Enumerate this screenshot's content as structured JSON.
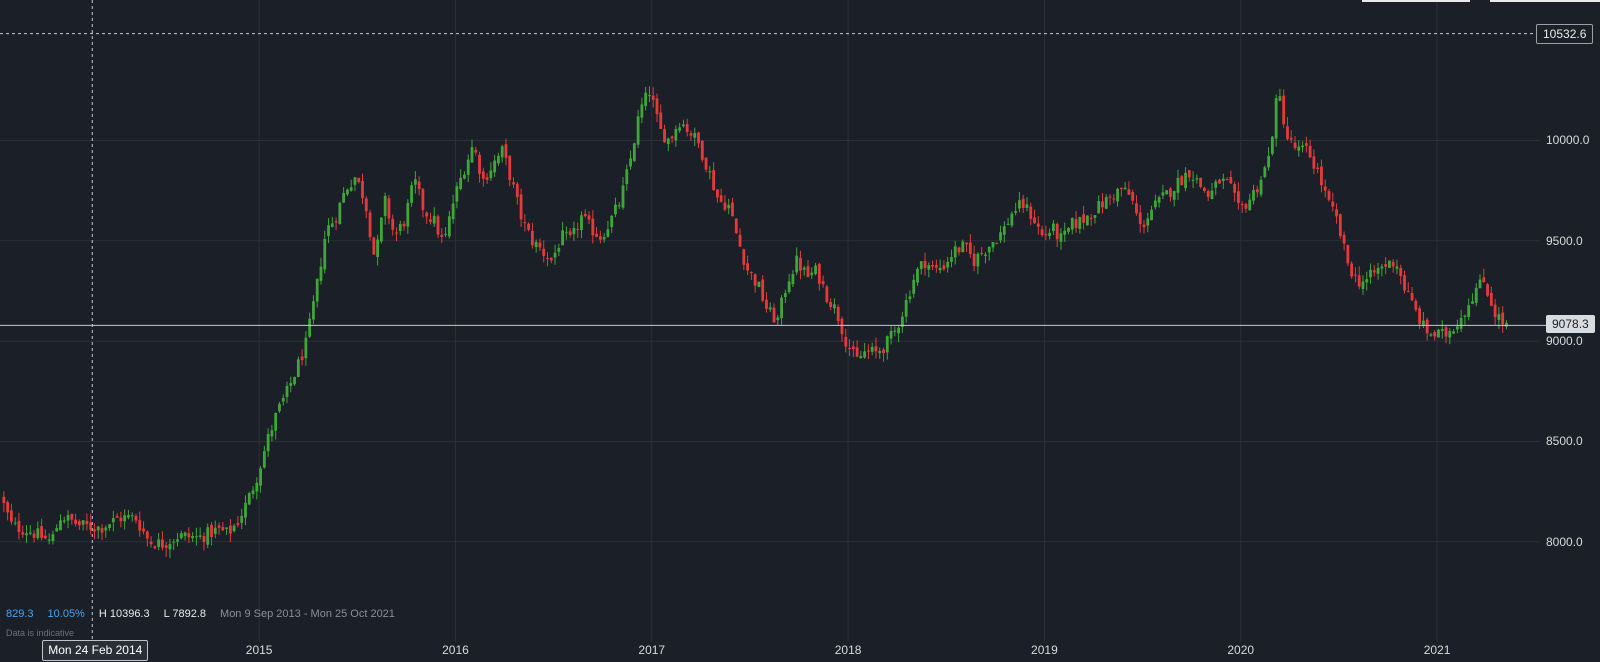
{
  "chart_data": {
    "type": "candlestick",
    "x_axis_labels": [
      "2015",
      "2016",
      "2017",
      "2018",
      "2019",
      "2020",
      "2021"
    ],
    "y_axis_labels": [
      "10000.0",
      "9500.0",
      "9000.0",
      "8500.0",
      "8000.0"
    ],
    "ylim": [
      7650,
      10700
    ],
    "xlim_years": [
      2013.68,
      2021.83
    ],
    "grid": true,
    "colors": {
      "up": "#3fa63a",
      "down": "#e63a3a",
      "grid": "#2b3039",
      "crosshair": "#c8ccd2"
    },
    "crosshair_price": "10532.6",
    "crosshair_price_value": 10532.6,
    "crosshair_date": "Mon 24 Feb 2014",
    "crosshair_date_value": 2014.15,
    "last_price": "9078.3",
    "last_price_value": 9078.3,
    "stats": {
      "change": "829.3",
      "change_pct": "10.05%",
      "high": "H 10396.3",
      "low": "L 7892.8",
      "range": "Mon 9 Sep 2013 - Mon 25 Oct 2021"
    },
    "note": "Data is indicative",
    "series": [
      {
        "points": [
          [
            2013.69,
            8230
          ],
          [
            2013.75,
            8080
          ],
          [
            2013.85,
            8050
          ],
          [
            2013.95,
            8000
          ],
          [
            2014.0,
            8130
          ],
          [
            2014.1,
            8080
          ],
          [
            2014.2,
            8070
          ],
          [
            2014.3,
            8120
          ],
          [
            2014.38,
            8120
          ],
          [
            2014.45,
            8000
          ],
          [
            2014.52,
            7990
          ],
          [
            2014.6,
            8030
          ],
          [
            2014.7,
            8020
          ],
          [
            2014.8,
            8060
          ],
          [
            2014.85,
            8040
          ],
          [
            2014.9,
            8100
          ],
          [
            2014.95,
            8200
          ],
          [
            2015.0,
            8330
          ],
          [
            2015.05,
            8500
          ],
          [
            2015.1,
            8640
          ],
          [
            2015.15,
            8740
          ],
          [
            2015.2,
            8860
          ],
          [
            2015.25,
            8990
          ],
          [
            2015.3,
            9250
          ],
          [
            2015.35,
            9550
          ],
          [
            2015.4,
            9620
          ],
          [
            2015.45,
            9760
          ],
          [
            2015.5,
            9820
          ],
          [
            2015.55,
            9700
          ],
          [
            2015.6,
            9400
          ],
          [
            2015.65,
            9700
          ],
          [
            2015.7,
            9520
          ],
          [
            2015.75,
            9600
          ],
          [
            2015.8,
            9800
          ],
          [
            2015.85,
            9650
          ],
          [
            2015.9,
            9600
          ],
          [
            2015.95,
            9480
          ],
          [
            2016.0,
            9700
          ],
          [
            2016.05,
            9850
          ],
          [
            2016.1,
            9980
          ],
          [
            2016.15,
            9800
          ],
          [
            2016.2,
            9880
          ],
          [
            2016.25,
            9950
          ],
          [
            2016.3,
            9780
          ],
          [
            2016.35,
            9600
          ],
          [
            2016.4,
            9500
          ],
          [
            2016.45,
            9450
          ],
          [
            2016.5,
            9400
          ],
          [
            2016.55,
            9520
          ],
          [
            2016.6,
            9500
          ],
          [
            2016.65,
            9620
          ],
          [
            2016.7,
            9560
          ],
          [
            2016.75,
            9520
          ],
          [
            2016.8,
            9600
          ],
          [
            2016.85,
            9700
          ],
          [
            2016.9,
            9900
          ],
          [
            2016.95,
            10150
          ],
          [
            2017.0,
            10250
          ],
          [
            2017.05,
            10050
          ],
          [
            2017.1,
            10000
          ],
          [
            2017.15,
            10100
          ],
          [
            2017.2,
            10050
          ],
          [
            2017.25,
            9980
          ],
          [
            2017.3,
            9850
          ],
          [
            2017.35,
            9700
          ],
          [
            2017.4,
            9680
          ],
          [
            2017.45,
            9500
          ],
          [
            2017.5,
            9350
          ],
          [
            2017.55,
            9280
          ],
          [
            2017.6,
            9150
          ],
          [
            2017.65,
            9100
          ],
          [
            2017.7,
            9300
          ],
          [
            2017.75,
            9400
          ],
          [
            2017.8,
            9320
          ],
          [
            2017.85,
            9350
          ],
          [
            2017.9,
            9230
          ],
          [
            2017.95,
            9150
          ],
          [
            2018.0,
            9000
          ],
          [
            2018.05,
            8900
          ],
          [
            2018.1,
            8950
          ],
          [
            2018.15,
            8940
          ],
          [
            2018.2,
            8980
          ],
          [
            2018.25,
            9050
          ],
          [
            2018.3,
            9180
          ],
          [
            2018.35,
            9330
          ],
          [
            2018.4,
            9400
          ],
          [
            2018.45,
            9350
          ],
          [
            2018.5,
            9380
          ],
          [
            2018.55,
            9450
          ],
          [
            2018.6,
            9470
          ],
          [
            2018.65,
            9400
          ],
          [
            2018.7,
            9450
          ],
          [
            2018.75,
            9500
          ],
          [
            2018.8,
            9550
          ],
          [
            2018.85,
            9650
          ],
          [
            2018.9,
            9680
          ],
          [
            2018.95,
            9620
          ],
          [
            2019.0,
            9520
          ],
          [
            2019.05,
            9560
          ],
          [
            2019.1,
            9500
          ],
          [
            2019.15,
            9580
          ],
          [
            2019.2,
            9600
          ],
          [
            2019.25,
            9640
          ],
          [
            2019.3,
            9680
          ],
          [
            2019.35,
            9720
          ],
          [
            2019.4,
            9760
          ],
          [
            2019.45,
            9720
          ],
          [
            2019.5,
            9560
          ],
          [
            2019.55,
            9650
          ],
          [
            2019.6,
            9700
          ],
          [
            2019.65,
            9750
          ],
          [
            2019.7,
            9800
          ],
          [
            2019.75,
            9850
          ],
          [
            2019.8,
            9780
          ],
          [
            2019.85,
            9720
          ],
          [
            2019.9,
            9800
          ],
          [
            2019.95,
            9780
          ],
          [
            2020.0,
            9650
          ],
          [
            2020.05,
            9700
          ],
          [
            2020.1,
            9780
          ],
          [
            2020.15,
            9900
          ],
          [
            2020.2,
            10250
          ],
          [
            2020.25,
            10000
          ],
          [
            2020.3,
            9950
          ],
          [
            2020.35,
            9950
          ],
          [
            2020.4,
            9850
          ],
          [
            2020.45,
            9700
          ],
          [
            2020.5,
            9600
          ],
          [
            2020.55,
            9400
          ],
          [
            2020.6,
            9300
          ],
          [
            2020.65,
            9300
          ],
          [
            2020.7,
            9350
          ],
          [
            2020.75,
            9380
          ],
          [
            2020.8,
            9400
          ],
          [
            2020.85,
            9250
          ],
          [
            2020.9,
            9150
          ],
          [
            2020.95,
            9050
          ],
          [
            2021.0,
            9030
          ],
          [
            2021.05,
            9030
          ],
          [
            2021.1,
            9080
          ],
          [
            2021.15,
            9150
          ],
          [
            2021.2,
            9250
          ],
          [
            2021.25,
            9300
          ],
          [
            2021.3,
            9150
          ],
          [
            2021.35,
            9080
          ]
        ]
      }
    ]
  }
}
